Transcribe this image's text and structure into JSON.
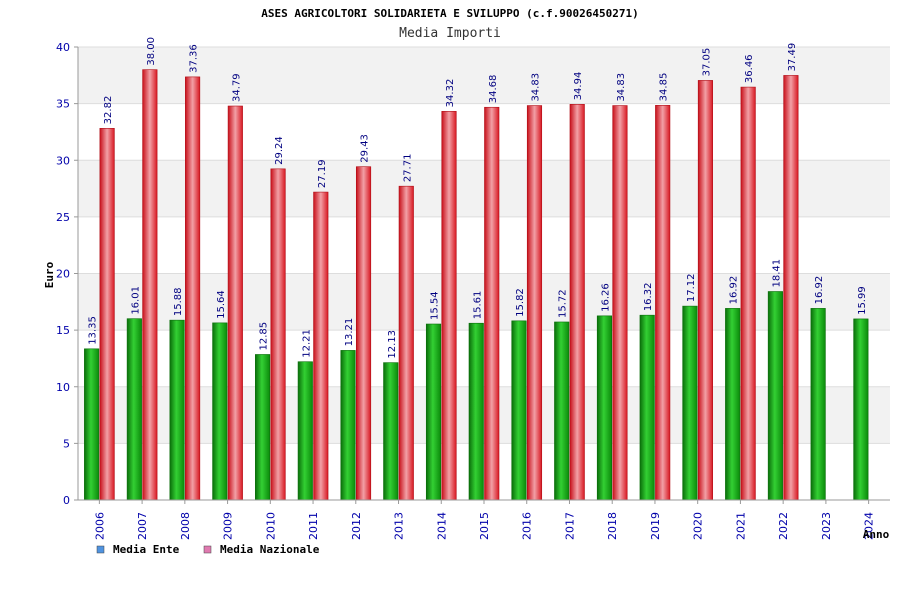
{
  "chart_data": {
    "type": "bar",
    "title": "ASES AGRICOLTORI SOLIDARIETA E SVILUPPO (c.f.90026450271)",
    "subtitle": "Media Importi",
    "xlabel": "Anno",
    "ylabel": "Euro",
    "ylim": [
      0,
      40
    ],
    "yticks": [
      "0",
      "5",
      "10",
      "15",
      "20",
      "25",
      "30",
      "35",
      "40"
    ],
    "grid": true,
    "legend_position": "bottom-left",
    "categories": [
      "2006",
      "2007",
      "2008",
      "2009",
      "2010",
      "2011",
      "2012",
      "2013",
      "2014",
      "2015",
      "2016",
      "2017",
      "2018",
      "2019",
      "2020",
      "2021",
      "2022",
      "2023",
      "2024"
    ],
    "series": [
      {
        "name": "Media Ente",
        "legend_color": "#4f93e0",
        "bar_color": "#16a016",
        "values": [
          13.35,
          16.01,
          15.88,
          15.64,
          12.85,
          12.21,
          13.21,
          12.13,
          15.54,
          15.61,
          15.82,
          15.72,
          16.26,
          16.32,
          17.12,
          16.92,
          18.41,
          16.92,
          15.99
        ],
        "labels": [
          "13.35",
          "16.01",
          "15.88",
          "15.64",
          "12.85",
          "12.21",
          "13.21",
          "12.13",
          "15.54",
          "15.61",
          "15.82",
          "15.72",
          "16.26",
          "16.32",
          "17.12",
          "16.92",
          "18.41",
          "16.92",
          "15.99"
        ]
      },
      {
        "name": "Media Nazionale",
        "legend_color": "#e07ab0",
        "bar_color": "#e8202a",
        "values": [
          32.82,
          38.0,
          37.36,
          34.79,
          29.24,
          27.19,
          29.43,
          27.71,
          34.32,
          34.68,
          34.83,
          34.94,
          34.83,
          34.85,
          37.05,
          36.46,
          37.49,
          null,
          null
        ],
        "labels": [
          "32.82",
          "38.00",
          "37.36",
          "34.79",
          "29.24",
          "27.19",
          "29.43",
          "27.71",
          "34.32",
          "34.68",
          "34.83",
          "34.94",
          "34.83",
          "34.85",
          "37.05",
          "36.46",
          "37.49",
          null,
          null
        ]
      }
    ]
  }
}
